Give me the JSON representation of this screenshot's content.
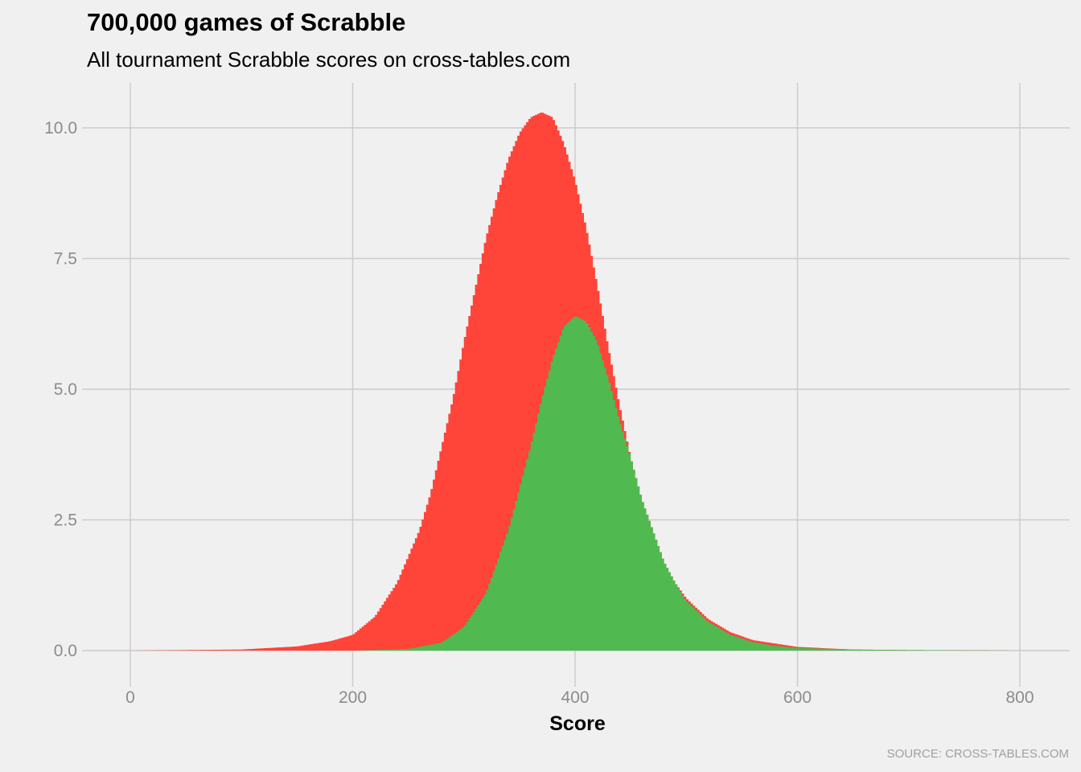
{
  "title": "700,000 games of Scrabble",
  "subtitle": "All tournament Scrabble scores on cross-tables.com",
  "caption": "SOURCE: CROSS-TABLES.COM",
  "chart_data": {
    "type": "area",
    "title": "700,000 games of Scrabble",
    "subtitle": "All tournament Scrabble scores on cross-tables.com",
    "xlabel": "Score",
    "ylabel": "",
    "xlim": [
      -20,
      820
    ],
    "ylim": [
      0,
      10.4
    ],
    "x_ticks": [
      0,
      200,
      400,
      600,
      800
    ],
    "x_tick_labels": [
      "0",
      "200",
      "400",
      "600",
      "800"
    ],
    "y_ticks": [
      0,
      2.5,
      5,
      7.5,
      10
    ],
    "y_tick_labels": [
      "0.0",
      "2.5",
      "5.0",
      "7.5",
      "10.0"
    ],
    "grid": true,
    "legend": "none",
    "series": [
      {
        "color": "#ff4439",
        "x": [
          0,
          100,
          150,
          180,
          200,
          220,
          240,
          260,
          270,
          280,
          290,
          300,
          310,
          320,
          330,
          340,
          350,
          360,
          370,
          380,
          390,
          400,
          410,
          420,
          430,
          440,
          450,
          460,
          470,
          480,
          490,
          500,
          520,
          540,
          560,
          600,
          650,
          700,
          800
        ],
        "values": [
          0.0,
          0.02,
          0.08,
          0.18,
          0.3,
          0.65,
          1.3,
          2.3,
          3.0,
          3.9,
          4.8,
          5.9,
          6.9,
          7.9,
          8.7,
          9.4,
          9.9,
          10.2,
          10.3,
          10.2,
          9.7,
          9.0,
          8.1,
          7.0,
          5.8,
          4.7,
          3.7,
          2.9,
          2.3,
          1.7,
          1.3,
          1.0,
          0.6,
          0.35,
          0.2,
          0.07,
          0.02,
          0.01,
          0.0
        ]
      },
      {
        "color": "#50b950",
        "x": [
          0,
          100,
          200,
          250,
          280,
          300,
          320,
          340,
          350,
          360,
          370,
          380,
          390,
          400,
          410,
          420,
          430,
          440,
          450,
          460,
          470,
          480,
          490,
          500,
          520,
          540,
          560,
          580,
          600,
          650,
          700,
          800
        ],
        "values": [
          0.0,
          0.0,
          0.0,
          0.03,
          0.15,
          0.45,
          1.1,
          2.3,
          3.1,
          3.9,
          4.8,
          5.6,
          6.2,
          6.4,
          6.3,
          5.9,
          5.2,
          4.4,
          3.7,
          2.9,
          2.3,
          1.7,
          1.3,
          0.95,
          0.55,
          0.3,
          0.16,
          0.09,
          0.05,
          0.02,
          0.01,
          0.0
        ]
      }
    ]
  }
}
